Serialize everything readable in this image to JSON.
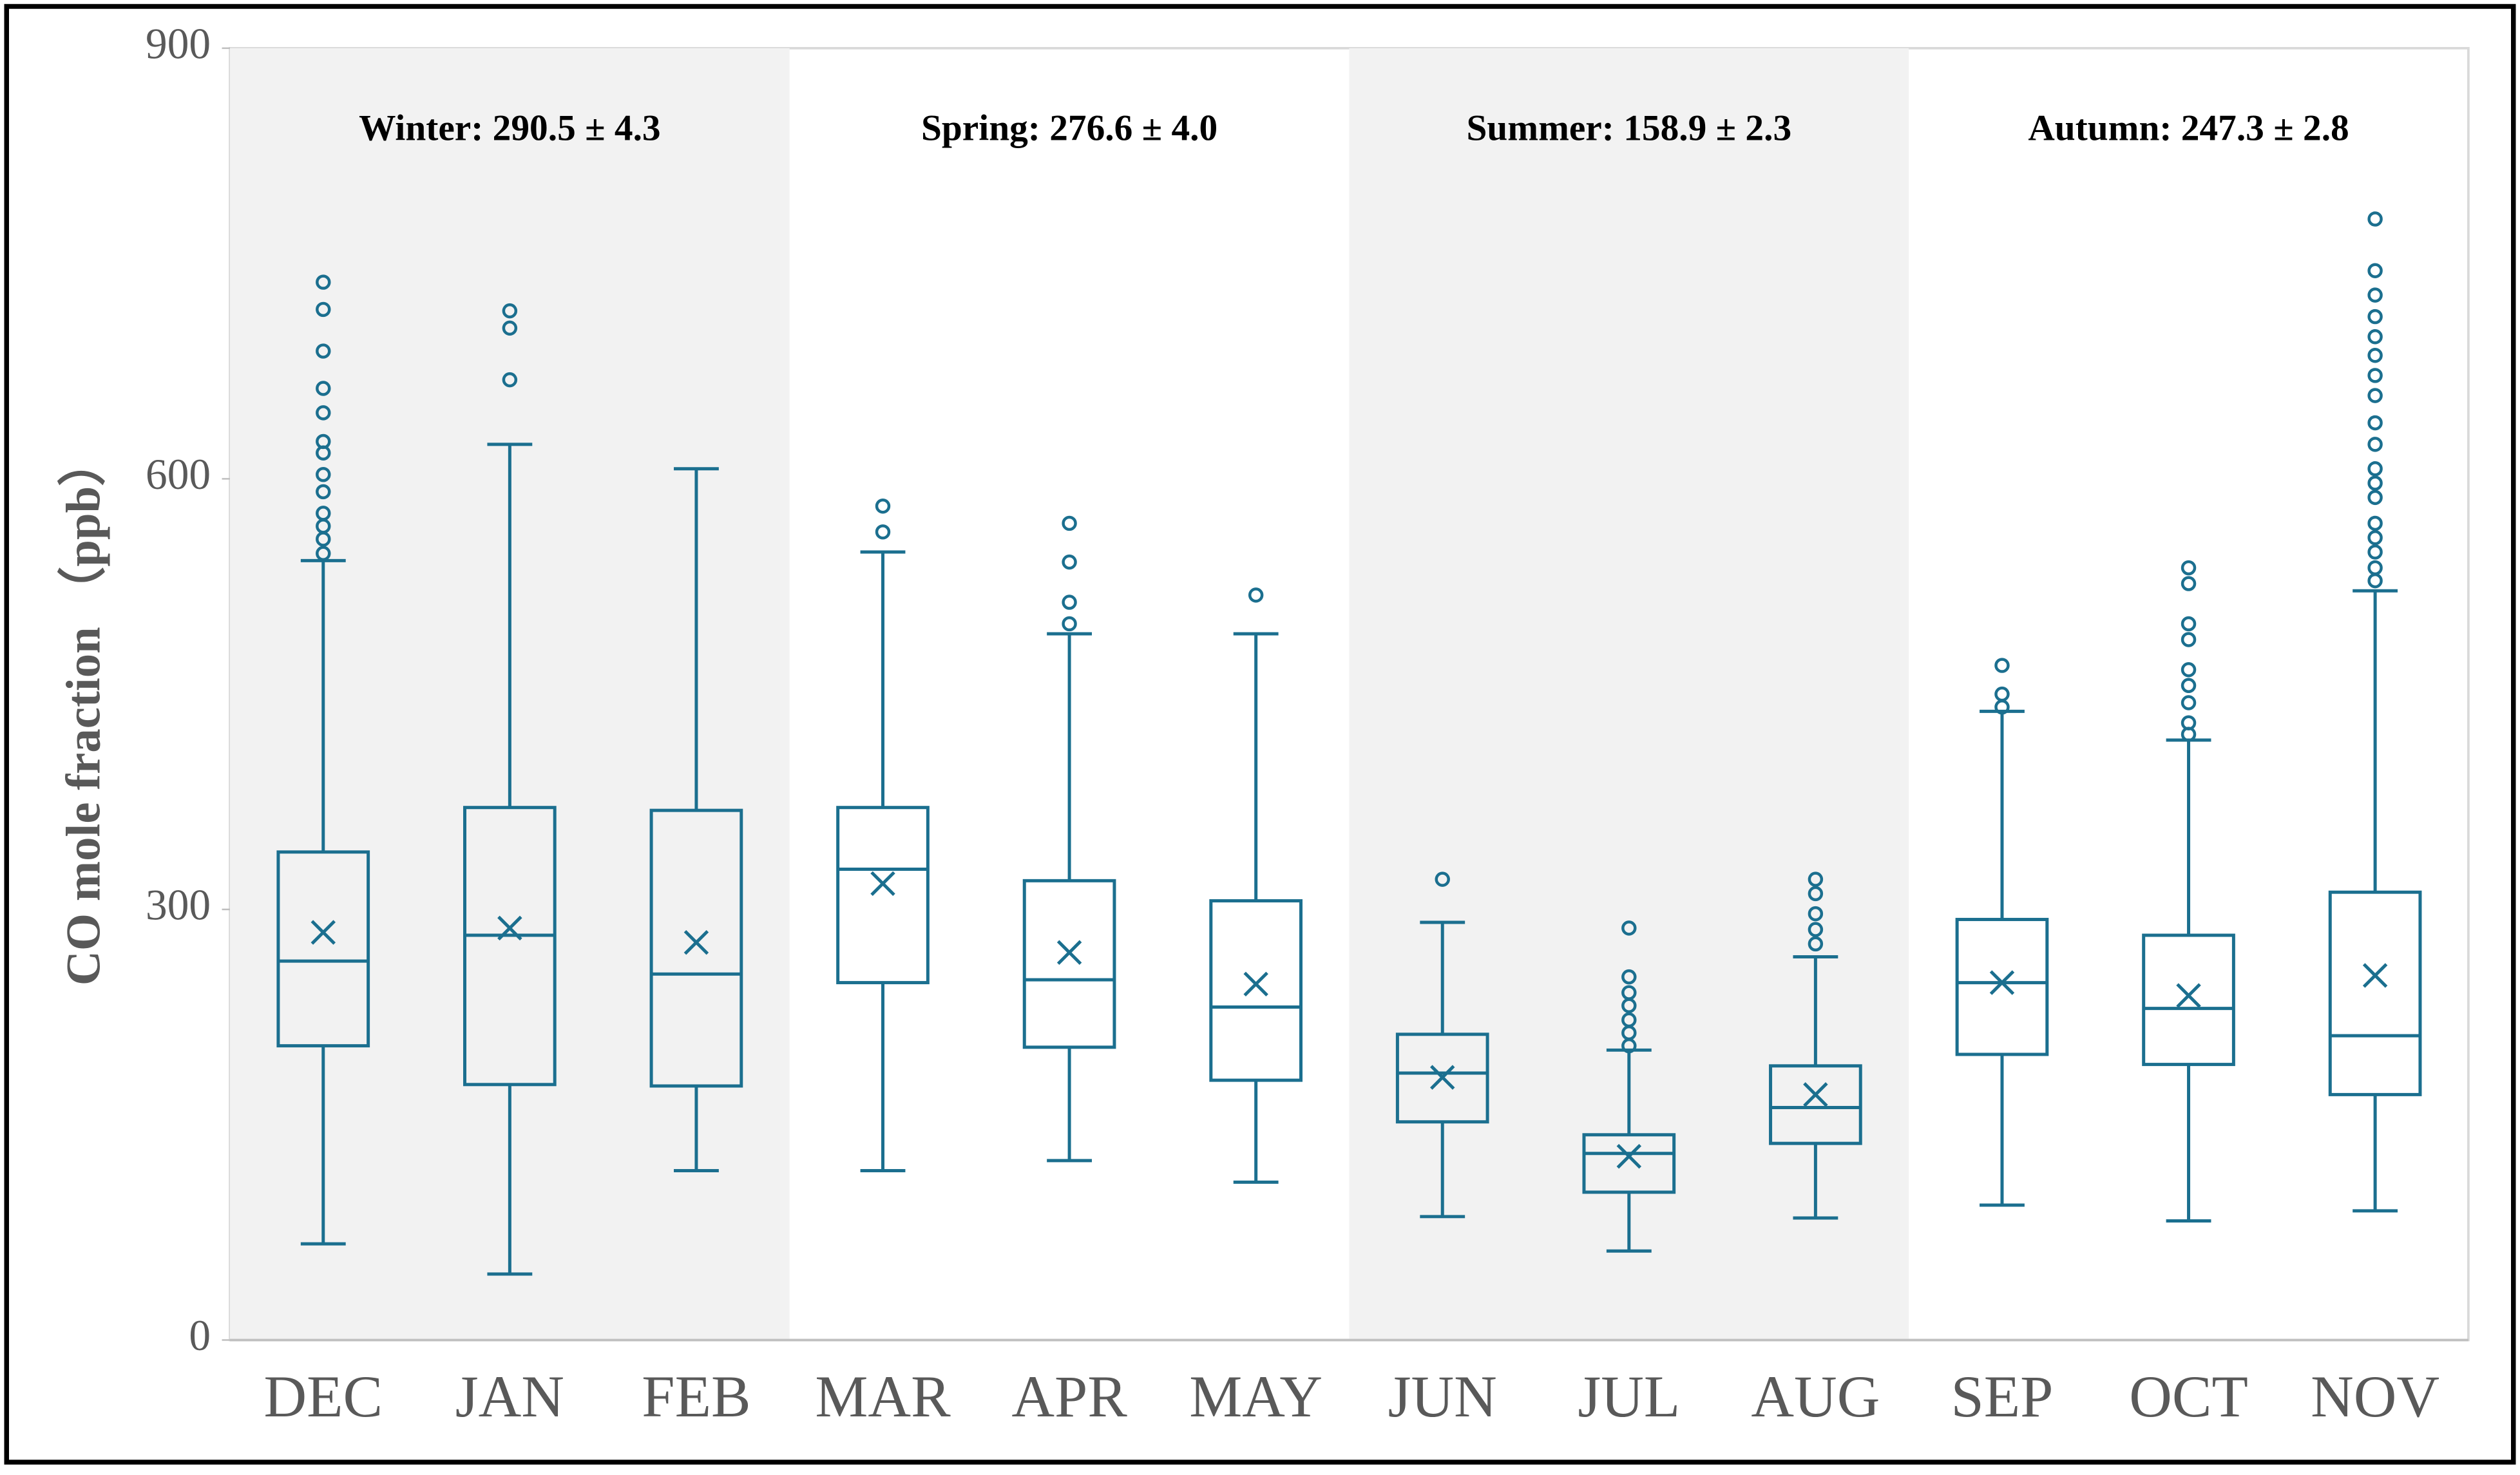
{
  "chart_data": {
    "type": "box",
    "y_label": "CO mole fraction （ppb）",
    "categories": [
      "DEC",
      "JAN",
      "FEB",
      "MAR",
      "APR",
      "MAY",
      "JUN",
      "JUL",
      "AUG",
      "SEP",
      "OCT",
      "NOV"
    ],
    "seasons": [
      "Winter: 290.5 ± 4.3",
      "Spring: 276.6 ± 4.0",
      "Summer: 158.9 ± 2.3",
      "Autumn: 247.3 ± 2.8"
    ],
    "color": "#1b6f8f",
    "ylim": [
      0,
      900
    ],
    "yticks": [
      0,
      300,
      600,
      900
    ],
    "boxes": [
      {
        "whisker_low": 67,
        "q1": 205,
        "median": 264,
        "q3": 340,
        "whisker_high": 543,
        "mean": 284,
        "outliers": [
          737,
          718,
          689,
          663,
          646,
          626,
          618,
          603,
          591,
          576,
          567,
          558,
          548
        ]
      },
      {
        "whisker_low": 46,
        "q1": 178,
        "median": 282,
        "q3": 371,
        "whisker_high": 624,
        "mean": 287,
        "outliers": [
          717,
          705,
          669
        ]
      },
      {
        "whisker_low": 118,
        "q1": 177,
        "median": 255,
        "q3": 369,
        "whisker_high": 607,
        "mean": 277,
        "outliers": []
      },
      {
        "whisker_low": 118,
        "q1": 249,
        "median": 328,
        "q3": 371,
        "whisker_high": 549,
        "mean": 318,
        "outliers": [
          581,
          563
        ]
      },
      {
        "whisker_low": 125,
        "q1": 204,
        "median": 251,
        "q3": 320,
        "whisker_high": 492,
        "mean": 270,
        "outliers": [
          569,
          542,
          514,
          499
        ]
      },
      {
        "whisker_low": 110,
        "q1": 181,
        "median": 232,
        "q3": 306,
        "whisker_high": 492,
        "mean": 248,
        "outliers": [
          519
        ]
      },
      {
        "whisker_low": 86,
        "q1": 152,
        "median": 186,
        "q3": 213,
        "whisker_high": 291,
        "mean": 183,
        "outliers": [
          321
        ]
      },
      {
        "whisker_low": 62,
        "q1": 103,
        "median": 130,
        "q3": 143,
        "whisker_high": 202,
        "mean": 128,
        "outliers": [
          287,
          253,
          242,
          233,
          223,
          214,
          205
        ]
      },
      {
        "whisker_low": 85,
        "q1": 137,
        "median": 162,
        "q3": 191,
        "whisker_high": 267,
        "mean": 171,
        "outliers": [
          321,
          311,
          297,
          286,
          276
        ]
      },
      {
        "whisker_low": 94,
        "q1": 199,
        "median": 249,
        "q3": 293,
        "whisker_high": 438,
        "mean": 249,
        "outliers": [
          470,
          450,
          441
        ]
      },
      {
        "whisker_low": 83,
        "q1": 192,
        "median": 231,
        "q3": 282,
        "whisker_high": 418,
        "mean": 240,
        "outliers": [
          538,
          527,
          499,
          488,
          467,
          456,
          444,
          430,
          422
        ]
      },
      {
        "whisker_low": 90,
        "q1": 171,
        "median": 212,
        "q3": 312,
        "whisker_high": 522,
        "mean": 254,
        "outliers": [
          781,
          745,
          728,
          713,
          699,
          686,
          672,
          658,
          639,
          624,
          607,
          597,
          587,
          569,
          559,
          549,
          538,
          529
        ]
      }
    ]
  }
}
